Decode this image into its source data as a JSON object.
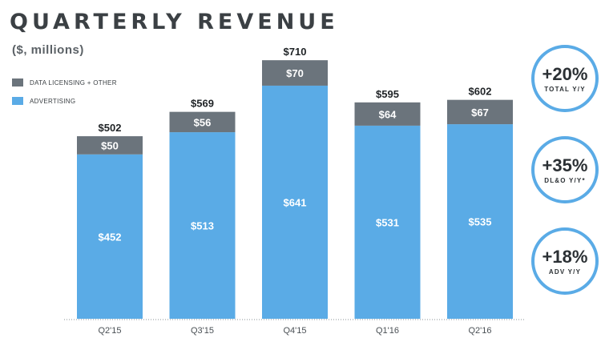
{
  "title": "QUARTERLY REVENUE",
  "subtitle": "($, millions)",
  "colors": {
    "data_licensing": "#6b747c",
    "advertising": "#5aabe6",
    "badge_ring": "#5aabe6"
  },
  "chart_data": {
    "type": "bar",
    "stacked": true,
    "categories": [
      "Q2'15",
      "Q3'15",
      "Q4'15",
      "Q1'16",
      "Q2'16"
    ],
    "series": [
      {
        "name": "ADVERTISING",
        "values": [
          452,
          513,
          641,
          531,
          535
        ]
      },
      {
        "name": "DATA LICENSING + OTHER",
        "values": [
          50,
          56,
          70,
          64,
          67
        ]
      }
    ],
    "totals": [
      "$502",
      "$569",
      "$710",
      "$595",
      "$602"
    ],
    "value_labels": {
      "advertising": [
        "$452",
        "$513",
        "$641",
        "$531",
        "$535"
      ],
      "data_licensing": [
        "$50",
        "$56",
        "$70",
        "$64",
        "$67"
      ]
    },
    "ylim": [
      0,
      740
    ],
    "grid": false,
    "legend_position": "top-left"
  },
  "legend": [
    {
      "label": "DATA LICENSING + OTHER",
      "color": "#6b747c"
    },
    {
      "label": "ADVERTISING",
      "color": "#5aabe6"
    }
  ],
  "badges": [
    {
      "value": "+20%",
      "label": "TOTAL Y/Y"
    },
    {
      "value": "+35%",
      "label": "DL&O Y/Y*"
    },
    {
      "value": "+18%",
      "label": "ADV Y/Y"
    }
  ]
}
